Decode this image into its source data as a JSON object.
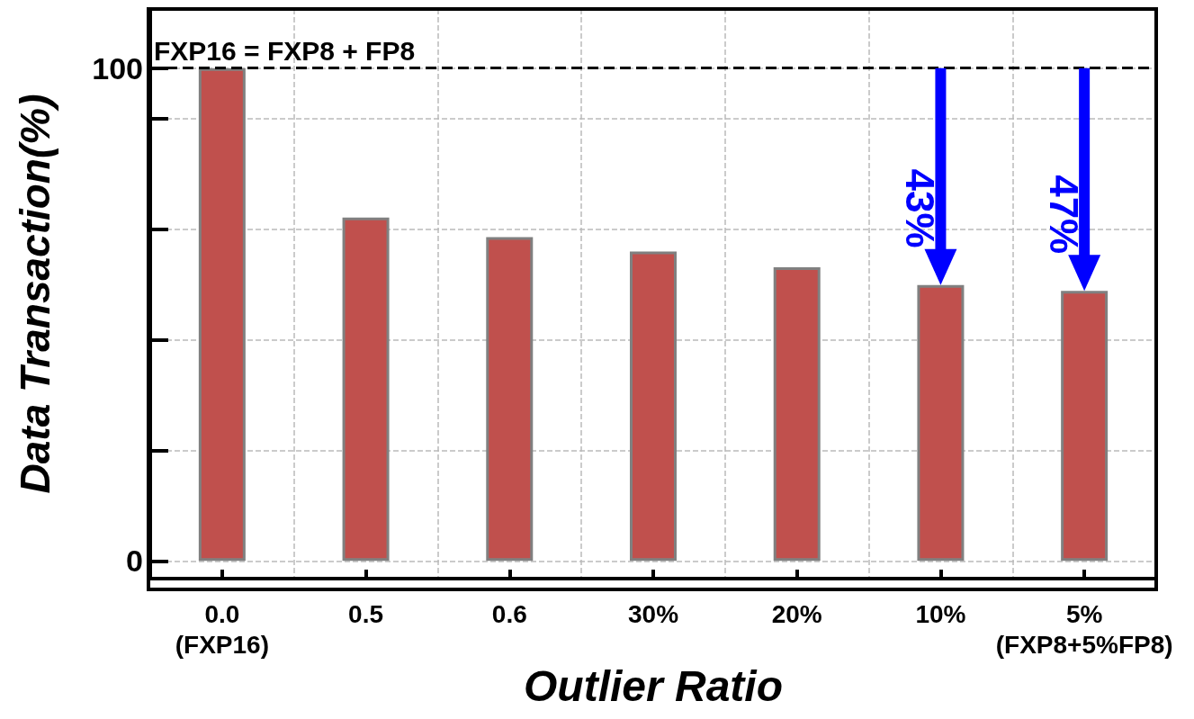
{
  "chart_data": {
    "type": "bar",
    "xlabel": "Outlier Ratio",
    "ylabel": "Data Transaction(%)",
    "categories": [
      "0.0\n(FXP16)",
      "0.5",
      "0.6",
      "30%",
      "20%",
      "10%",
      "5%\n(FXP8+5%FP8)"
    ],
    "values": [
      100,
      69.7,
      65.7,
      62.8,
      59.6,
      56.0,
      54.8
    ],
    "color": "#c0504d",
    "ylim": [
      -3.6,
      112
    ],
    "yticks": [
      0,
      {
        "value": 22.4,
        "label": null
      },
      {
        "value": 44.9,
        "label": null
      },
      {
        "value": 67.3,
        "label": null
      },
      {
        "value": 89.8,
        "label": null
      },
      100
    ],
    "grid": true,
    "ref_lines": [
      {
        "axis": "y",
        "value": 100,
        "label": "FXP16 = FXP8 + FP8",
        "color": "#000000",
        "line_style": "dashed"
      }
    ],
    "annotations": [
      {
        "text": "43%",
        "x": "10%",
        "y": 56.0
      },
      {
        "text": "47%",
        "x": "5%\n(FXP8+5%FP8)",
        "y": 54.8
      }
    ]
  }
}
